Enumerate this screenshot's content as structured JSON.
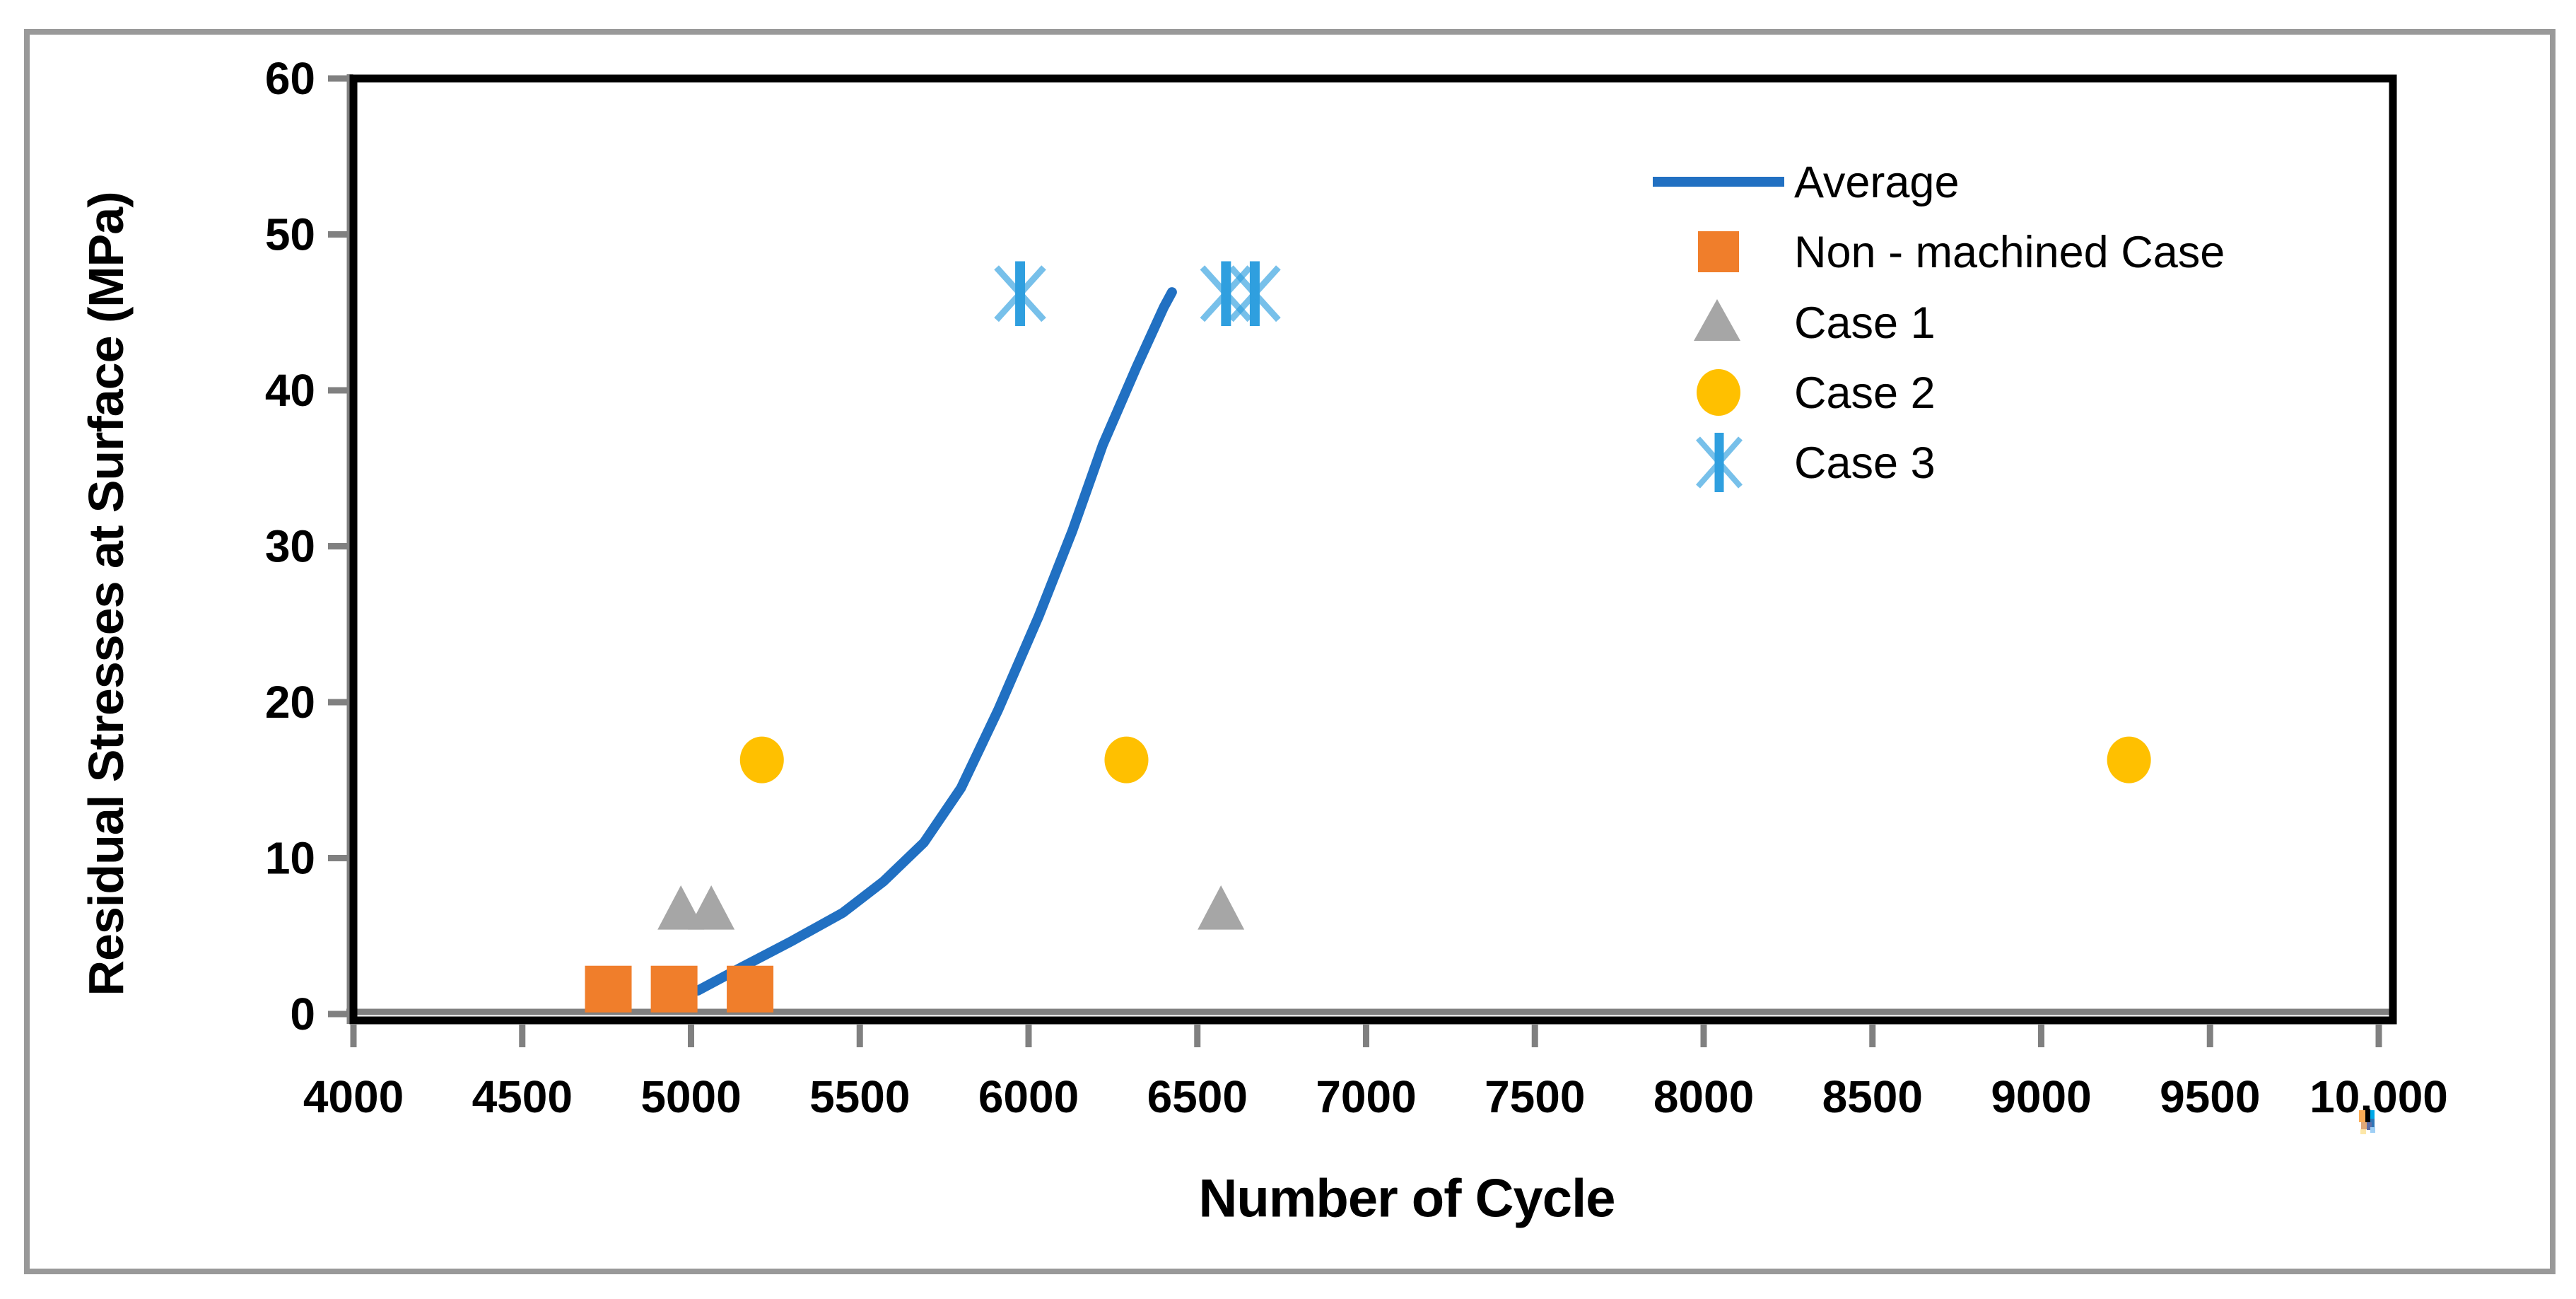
{
  "figure": {
    "background": "#FFFFFF",
    "frame_color": "#999999",
    "plot_border_color": "#000000",
    "axis_line_color": "#808080",
    "tick_color": "#808080"
  },
  "chart_data": {
    "type": "scatter",
    "title": "",
    "xlabel": "Number of Cycle",
    "ylabel": "Residual Stresses at Surface (MPa)",
    "xlim": [
      4000,
      10000
    ],
    "ylim": [
      0,
      60
    ],
    "grid": false,
    "legend_position": "top-right-inside",
    "x_ticks": [
      {
        "value": 4000,
        "label": "4000"
      },
      {
        "value": 4500,
        "label": "4500"
      },
      {
        "value": 5000,
        "label": "5000"
      },
      {
        "value": 5500,
        "label": "5500"
      },
      {
        "value": 6000,
        "label": "6000"
      },
      {
        "value": 6500,
        "label": "6500"
      },
      {
        "value": 7000,
        "label": "7000"
      },
      {
        "value": 7500,
        "label": "7500"
      },
      {
        "value": 8000,
        "label": "8000"
      },
      {
        "value": 8500,
        "label": "8500"
      },
      {
        "value": 9000,
        "label": "9000"
      },
      {
        "value": 9500,
        "label": "9500"
      },
      {
        "value": 10000,
        "label": "10,000"
      }
    ],
    "y_ticks": [
      {
        "value": 0,
        "label": "0"
      },
      {
        "value": 10,
        "label": "10"
      },
      {
        "value": 20,
        "label": "20"
      },
      {
        "value": 30,
        "label": "30"
      },
      {
        "value": 40,
        "label": "40"
      },
      {
        "value": 50,
        "label": "50"
      },
      {
        "value": 60,
        "label": "60"
      }
    ],
    "series": [
      {
        "name": "Average",
        "kind": "line",
        "color": "#2170C2",
        "stroke_width": 14,
        "points": [
          [
            5020,
            1.5
          ],
          [
            5150,
            3.0
          ],
          [
            5300,
            4.7
          ],
          [
            5450,
            6.5
          ],
          [
            5570,
            8.5
          ],
          [
            5690,
            11.0
          ],
          [
            5800,
            14.5
          ],
          [
            5910,
            19.5
          ],
          [
            6030,
            25.5
          ],
          [
            6130,
            31.0
          ],
          [
            6220,
            36.5
          ],
          [
            6320,
            41.5
          ],
          [
            6400,
            45.3
          ],
          [
            6425,
            46.3
          ]
        ]
      },
      {
        "name": "Non - machined Case",
        "kind": "scatter",
        "marker": "square",
        "color": "#F07E2B",
        "points": [
          [
            4755,
            1.6
          ],
          [
            4950,
            1.6
          ],
          [
            5175,
            1.6
          ]
        ]
      },
      {
        "name": "Case 1",
        "kind": "scatter",
        "marker": "triangle",
        "color": "#A6A6A6",
        "points": [
          [
            4970,
            6.7
          ],
          [
            5060,
            6.7
          ],
          [
            6570,
            6.7
          ]
        ]
      },
      {
        "name": "Case 2",
        "kind": "scatter",
        "marker": "circle",
        "color": "#FFC000",
        "points": [
          [
            5210,
            16.3
          ],
          [
            6290,
            16.3
          ],
          [
            9260,
            16.3
          ]
        ]
      },
      {
        "name": "Case 3",
        "kind": "scatter",
        "marker": "asterisk",
        "color": "#2F9FDF",
        "points": [
          [
            5975,
            46.2
          ],
          [
            6585,
            46.2
          ],
          [
            6670,
            46.2
          ]
        ]
      }
    ],
    "artifact": {
      "description_colors": [
        "#FBAC55",
        "#000000",
        "#00A8E8",
        "#2E75B6",
        "#E0A878",
        "#5E6FA8",
        "#FDE7A8",
        "#9FCFF5"
      ]
    }
  }
}
